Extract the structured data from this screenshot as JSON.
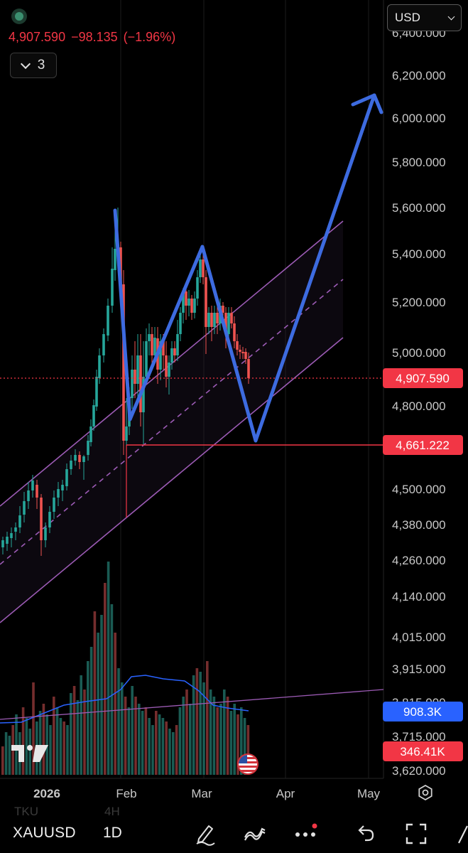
{
  "header": {
    "price": "4,907.590",
    "change": "−98.135",
    "change_pct": "(−1.96%)",
    "indicator_count": "3",
    "currency": "USD"
  },
  "price_axis": {
    "labels": [
      "6,400.000",
      "6,200.000",
      "6,000.000",
      "5,800.000",
      "5,600.000",
      "5,400.000",
      "5,200.000",
      "5,000.000",
      "4,800.000",
      "4,500.000",
      "4,380.000",
      "4,260.000",
      "4,140.000",
      "4,015.000",
      "3,915.000",
      "3,815.000",
      "3,715.000",
      "3,620.000"
    ],
    "badges": {
      "last_price": "4,907.590",
      "marked_level": "4,661.222",
      "volume_ma": "908.3K",
      "volume": "346.41K"
    }
  },
  "time_axis": {
    "labels": [
      "2026",
      "Feb",
      "Mar",
      "Apr",
      "May"
    ]
  },
  "toolbar": {
    "symbol": "XAUUSD",
    "interval": "1D",
    "ghost_left": "TKU",
    "ghost_mid": "4H"
  },
  "colors": {
    "up": "#26a69a",
    "down": "#ef5350",
    "drawing": "#3d6be0",
    "channel": "#9c5bb5",
    "level": "#f23645",
    "volume_ma": "#2962ff"
  },
  "icons": [
    "status-dot-icon",
    "chevron-down-icon",
    "tradingview-logo-icon",
    "us-flag-icon",
    "settings-icon",
    "draw-icon",
    "indicators-icon",
    "more-icon",
    "undo-icon",
    "fullscreen-icon"
  ]
}
